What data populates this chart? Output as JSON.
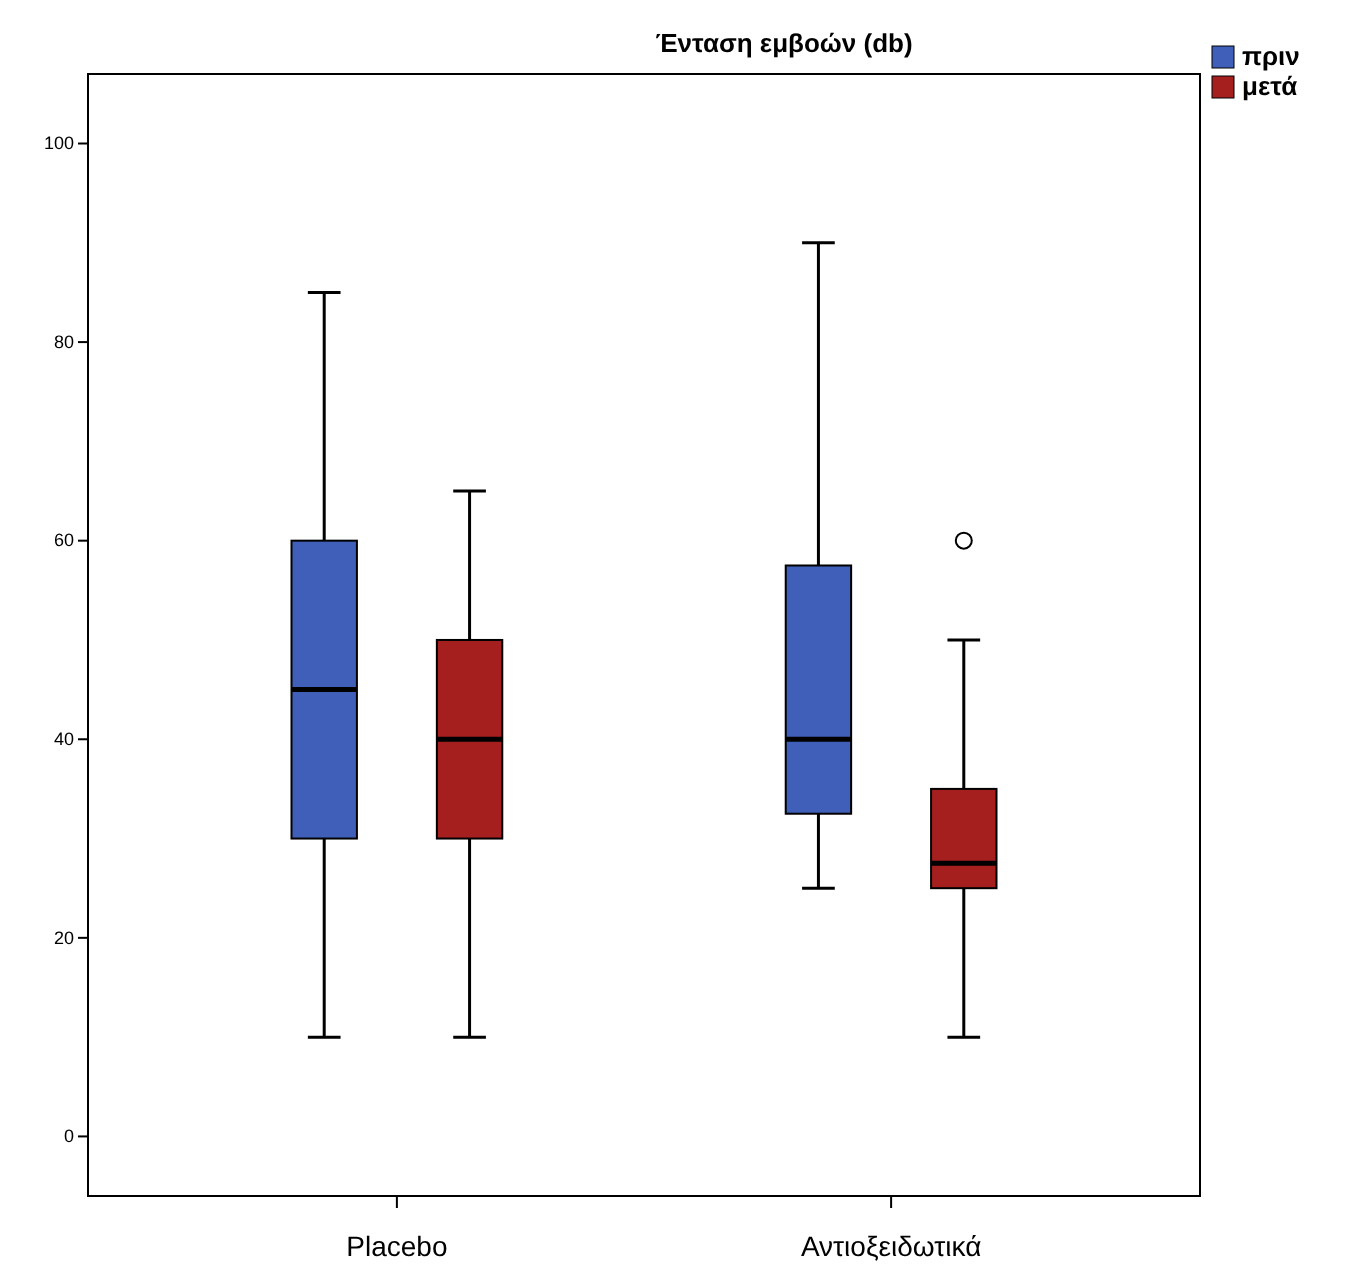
{
  "chart_data": {
    "type": "box",
    "title": "Ένταση εμβοών (db)",
    "categories": [
      "Placebo",
      "Αντιοξειδωτικά"
    ],
    "series": [
      {
        "name": "πριν",
        "color": "#3f5fb8",
        "boxes": [
          {
            "low": 10,
            "q1": 30,
            "median": 45,
            "q3": 60,
            "high": 85
          },
          {
            "low": 25,
            "q1": 32.5,
            "median": 40,
            "q3": 57.5,
            "high": 90
          }
        ]
      },
      {
        "name": "μετά",
        "color": "#a51f1f",
        "boxes": [
          {
            "low": 10,
            "q1": 30,
            "median": 40,
            "q3": 50,
            "high": 65
          },
          {
            "low": 10,
            "q1": 25,
            "median": 27.5,
            "q3": 35,
            "high": 50,
            "outliers": [
              60
            ]
          }
        ]
      }
    ],
    "ylim": [
      -6,
      107
    ],
    "yticks": [
      0,
      20,
      40,
      60,
      80,
      100
    ],
    "grid": false,
    "legend": "top right"
  }
}
